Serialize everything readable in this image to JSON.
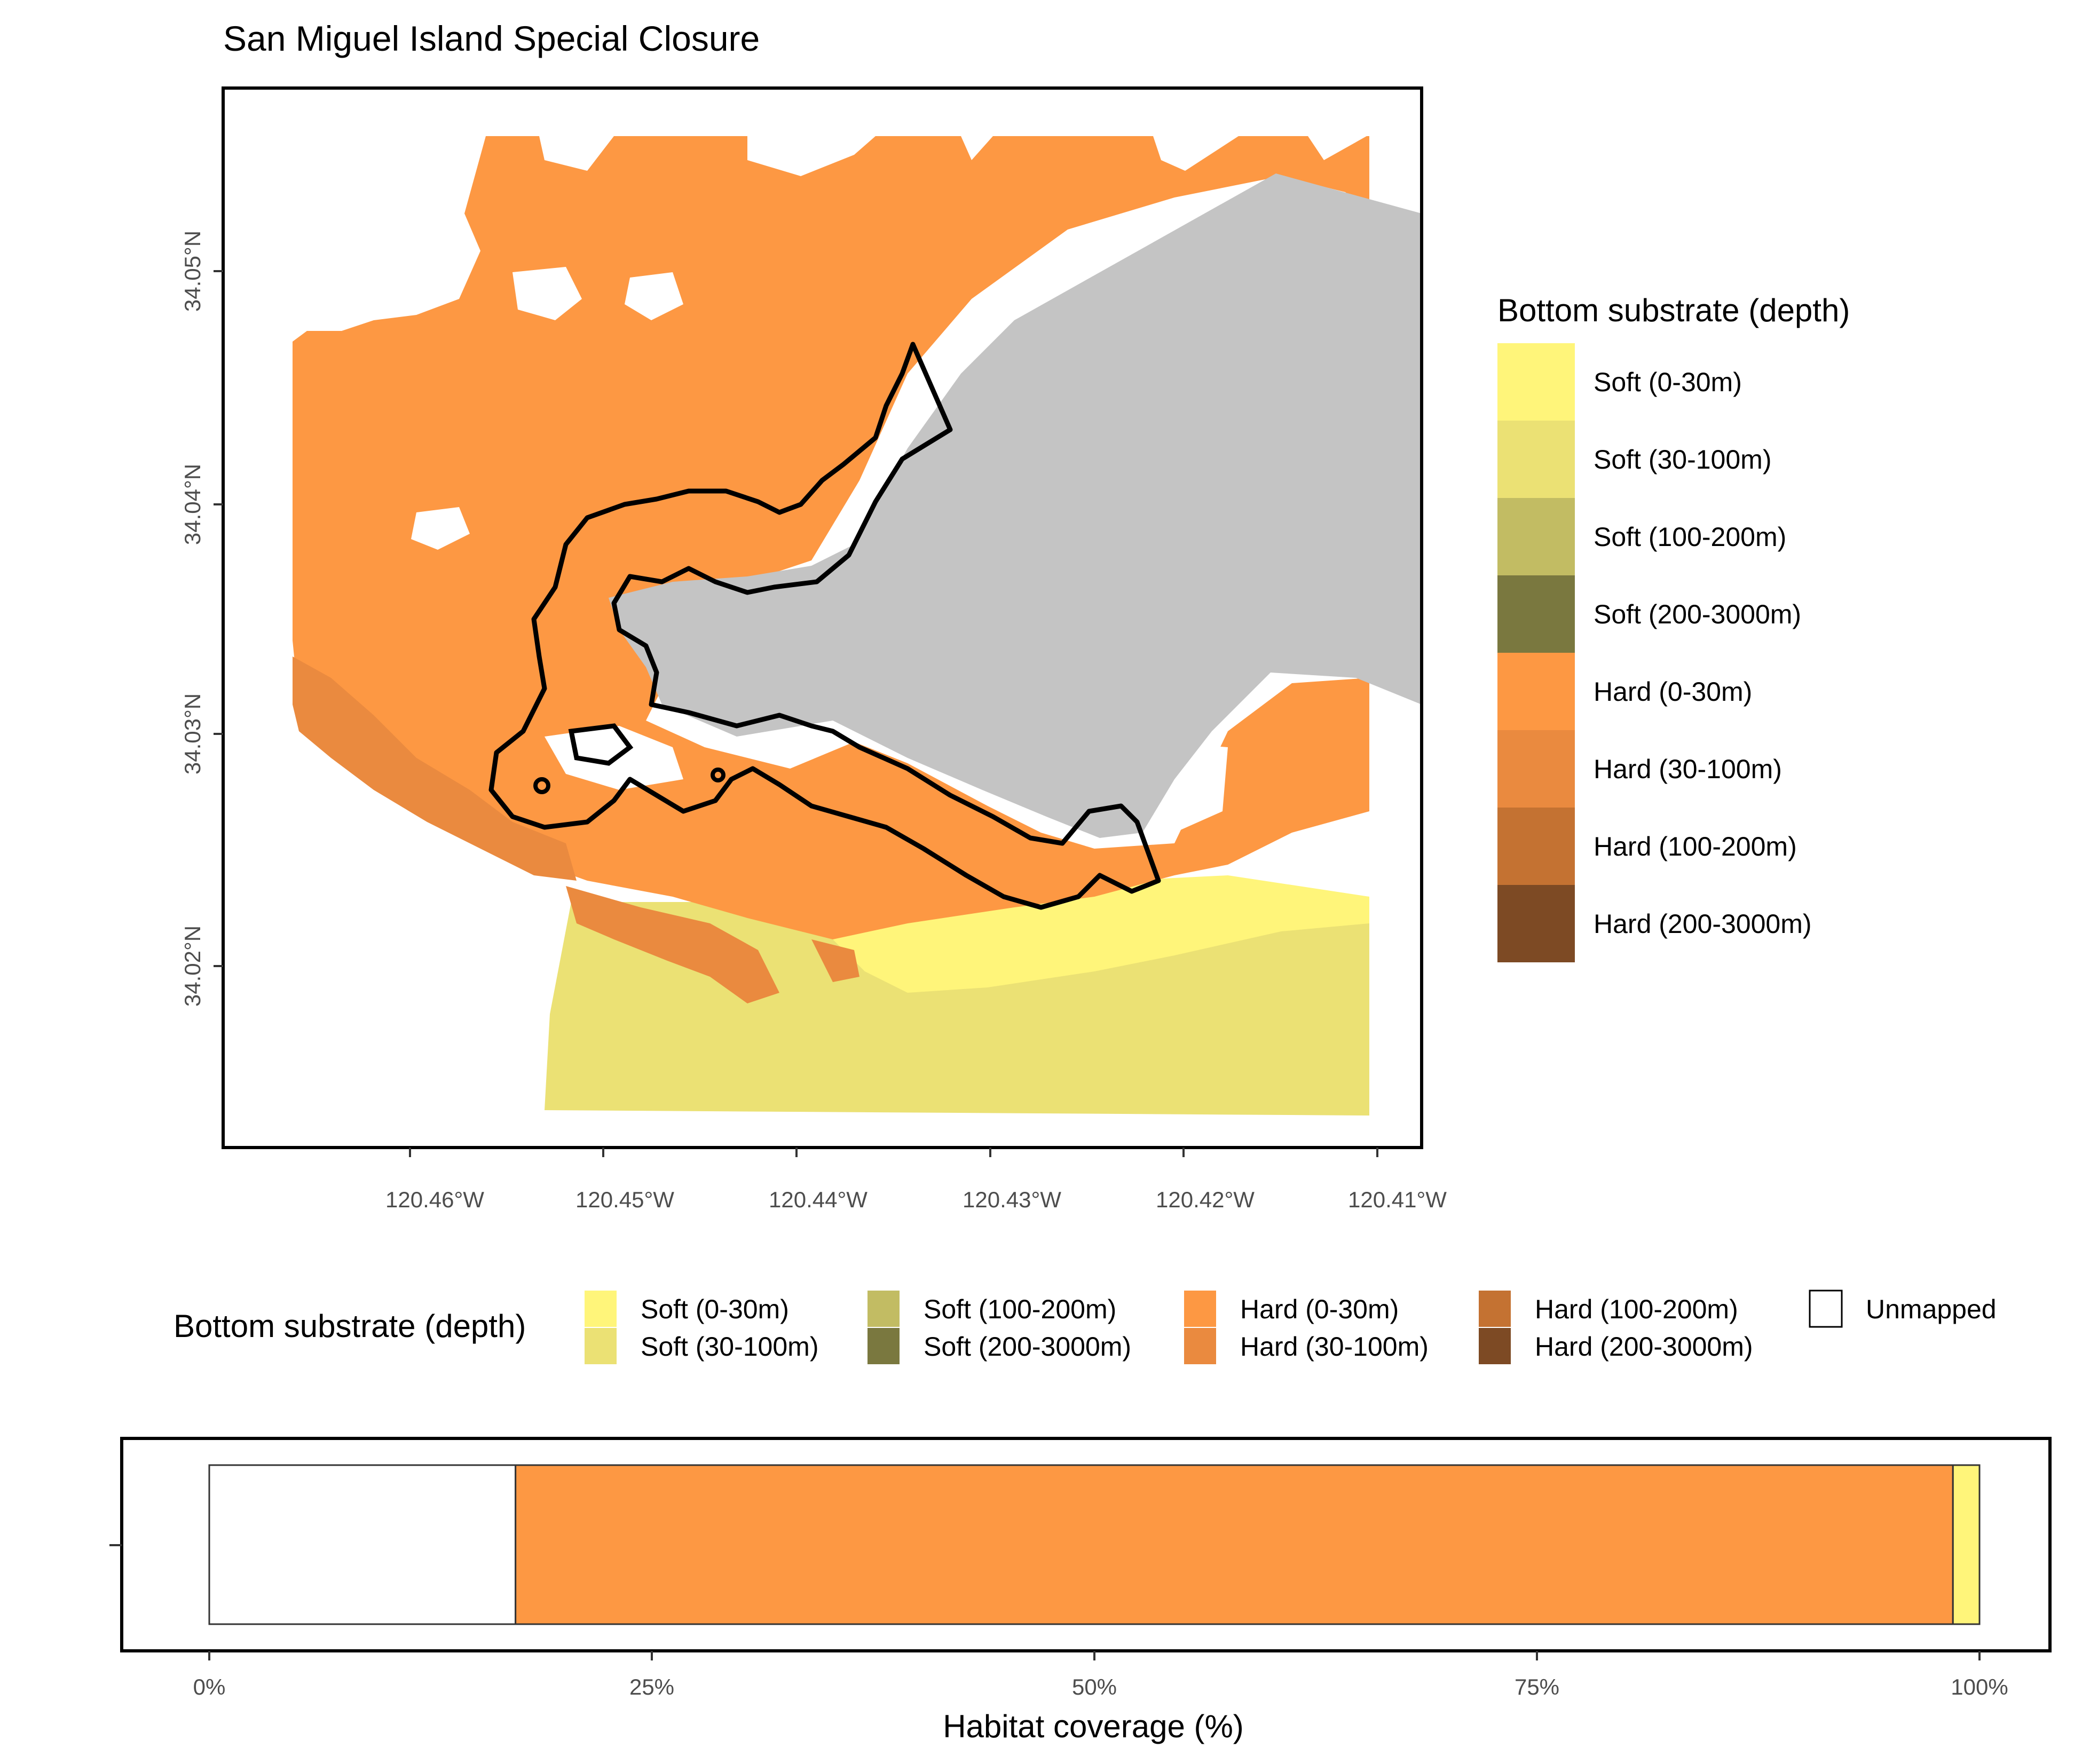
{
  "title": "San Miguel Island Special Closure",
  "colors": {
    "soft_0_30": "#FFF57A",
    "soft_30_100": "#EBE174",
    "soft_100_200": "#C2BC63",
    "soft_200_3000": "#7A783F",
    "hard_0_30": "#FD9843",
    "hard_30_100": "#EA8A3F",
    "hard_100_200": "#C47232",
    "hard_200_3000": "#7D4A24",
    "land": "#C4C4C4",
    "unmapped": "#FFFFFF",
    "outline": "#000000"
  },
  "map": {
    "x_ticks": [
      "120.46°W",
      "120.45°W",
      "120.44°W",
      "120.43°W",
      "120.42°W",
      "120.41°W"
    ],
    "y_ticks": [
      "34.05°N",
      "34.04°N",
      "34.03°N",
      "34.02°N"
    ]
  },
  "legend_right": {
    "title": "Bottom substrate (depth)",
    "items": [
      {
        "label": "Soft (0-30m)",
        "color": "#FFF57A"
      },
      {
        "label": "Soft (30-100m)",
        "color": "#EBE174"
      },
      {
        "label": "Soft (100-200m)",
        "color": "#C2BC63"
      },
      {
        "label": "Soft (200-3000m)",
        "color": "#7A783F"
      },
      {
        "label": "Hard (0-30m)",
        "color": "#FD9843"
      },
      {
        "label": "Hard (30-100m)",
        "color": "#EA8A3F"
      },
      {
        "label": "Hard (100-200m)",
        "color": "#C47232"
      },
      {
        "label": "Hard (200-3000m)",
        "color": "#7D4A24"
      }
    ]
  },
  "legend_bottom": {
    "title": "Bottom substrate (depth)",
    "items": [
      {
        "label": "Soft (0-30m)",
        "color": "#FFF57A"
      },
      {
        "label": "Soft (30-100m)",
        "color": "#EBE174"
      },
      {
        "label": "Soft (100-200m)",
        "color": "#C2BC63"
      },
      {
        "label": "Soft (200-3000m)",
        "color": "#7A783F"
      },
      {
        "label": "Hard (0-30m)",
        "color": "#FD9843"
      },
      {
        "label": "Hard (30-100m)",
        "color": "#EA8A3F"
      },
      {
        "label": "Hard (100-200m)",
        "color": "#C47232"
      },
      {
        "label": "Hard (200-3000m)",
        "color": "#7D4A24"
      },
      {
        "label": "Unmapped",
        "color": "#FFFFFF"
      }
    ]
  },
  "chart_data": {
    "type": "bar",
    "orientation": "horizontal-stacked",
    "xlabel": "Habitat coverage (%)",
    "xlim": [
      0,
      100
    ],
    "x_ticks": [
      "0%",
      "25%",
      "50%",
      "75%",
      "100%"
    ],
    "x_tick_values": [
      0,
      25,
      50,
      75,
      100
    ],
    "series": [
      {
        "name": "Unmapped",
        "value": 17.3,
        "color": "#FFFFFF"
      },
      {
        "name": "Hard (0-30m)",
        "value": 81.2,
        "color": "#FD9843"
      },
      {
        "name": "Soft (0-30m)",
        "value": 1.5,
        "color": "#FFF57A"
      }
    ]
  }
}
